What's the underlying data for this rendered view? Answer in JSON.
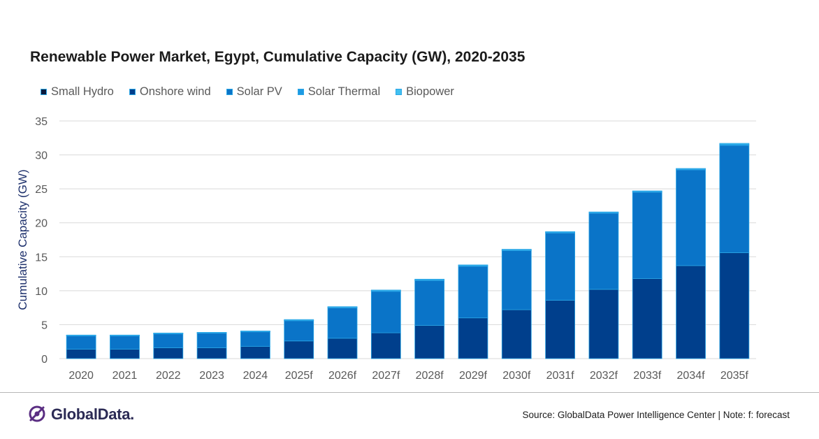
{
  "chart_data": {
    "type": "bar",
    "stacked": true,
    "title": "Renewable Power Market, Egypt, Cumulative Capacity (GW), 2020-2035",
    "ylabel": "Cumulative Capacity (GW)",
    "xlabel": "",
    "ylim": [
      0,
      35
    ],
    "yticks": [
      0,
      5,
      10,
      15,
      20,
      25,
      30,
      35
    ],
    "grid": true,
    "legend_position": "top-left",
    "categories": [
      "2020",
      "2021",
      "2022",
      "2023",
      "2024",
      "2025f",
      "2026f",
      "2027f",
      "2028f",
      "2029f",
      "2030f",
      "2031f",
      "2032f",
      "2033f",
      "2034f",
      "2035f"
    ],
    "series": [
      {
        "name": "Small Hydro",
        "color": "#0b1a3c",
        "values": [
          0,
          0,
          0,
          0,
          0,
          0,
          0,
          0,
          0,
          0,
          0,
          0,
          0,
          0,
          0,
          0
        ]
      },
      {
        "name": "Onshore wind",
        "color": "#003f8c",
        "values": [
          1.4,
          1.4,
          1.6,
          1.6,
          1.8,
          2.6,
          3.0,
          3.8,
          4.9,
          6.0,
          7.2,
          8.6,
          10.2,
          11.8,
          13.7,
          15.6
        ]
      },
      {
        "name": "Solar PV",
        "color": "#0a74c8",
        "values": [
          2.0,
          2.0,
          2.1,
          2.2,
          2.2,
          3.0,
          4.5,
          6.1,
          6.6,
          7.6,
          8.7,
          9.9,
          11.2,
          12.7,
          14.1,
          15.8
        ]
      },
      {
        "name": "Solar Thermal",
        "color": "#1d9ae3",
        "values": [
          0.02,
          0.02,
          0.02,
          0.02,
          0.02,
          0.05,
          0.05,
          0.1,
          0.1,
          0.1,
          0.1,
          0.1,
          0.1,
          0.1,
          0.1,
          0.15
        ]
      },
      {
        "name": "Biopower",
        "color": "#41c0f0",
        "values": [
          0.05,
          0.05,
          0.05,
          0.05,
          0.05,
          0.1,
          0.1,
          0.1,
          0.1,
          0.1,
          0.1,
          0.1,
          0.1,
          0.1,
          0.1,
          0.15
        ]
      }
    ]
  },
  "footer": {
    "logo_text": "GlobalData.",
    "source": "Source: GlobalData Power Intelligence Center | Note: f: forecast"
  },
  "colors": {
    "grid": "#d9d9d9",
    "axis_text": "#595959",
    "ylabel": "#1c2f6b",
    "logo_purple": "#5a2d82"
  },
  "icons": {
    "logo": "globaldata-logo-icon"
  }
}
